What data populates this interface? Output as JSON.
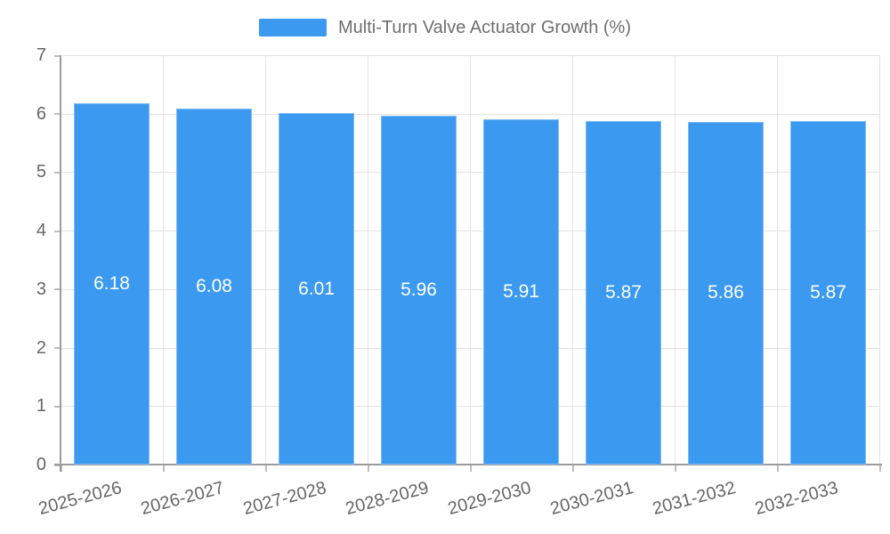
{
  "legend": {
    "label": "Multi-Turn Valve Actuator Growth (%)"
  },
  "chart_data": {
    "type": "bar",
    "title": "Multi-Turn Valve Actuator Growth (%)",
    "legend_entries": [
      "Multi-Turn Valve Actuator Growth (%)"
    ],
    "legend_position": "top",
    "categories": [
      "2025-2026",
      "2026-2027",
      "2027-2028",
      "2028-2029",
      "2029-2030",
      "2030-2031",
      "2031-2032",
      "2032-2033"
    ],
    "values": [
      6.18,
      6.08,
      6.01,
      5.96,
      5.91,
      5.87,
      5.86,
      5.87
    ],
    "value_label_decimals": 2,
    "xlabel": "",
    "ylabel": "",
    "ylim": [
      0,
      7
    ],
    "yticks": [
      0,
      1,
      2,
      3,
      4,
      5,
      6,
      7
    ],
    "grid": true,
    "colors": {
      "bar": "#3B99EF",
      "grid": "#E3E3E3",
      "axis": "#9C9C9C",
      "tick": "#BDBDBD",
      "tick_label": "#666666",
      "value_label": "#FFFFFF",
      "legend_text": "#6F6F6F",
      "background": "#FFFFFF"
    }
  }
}
